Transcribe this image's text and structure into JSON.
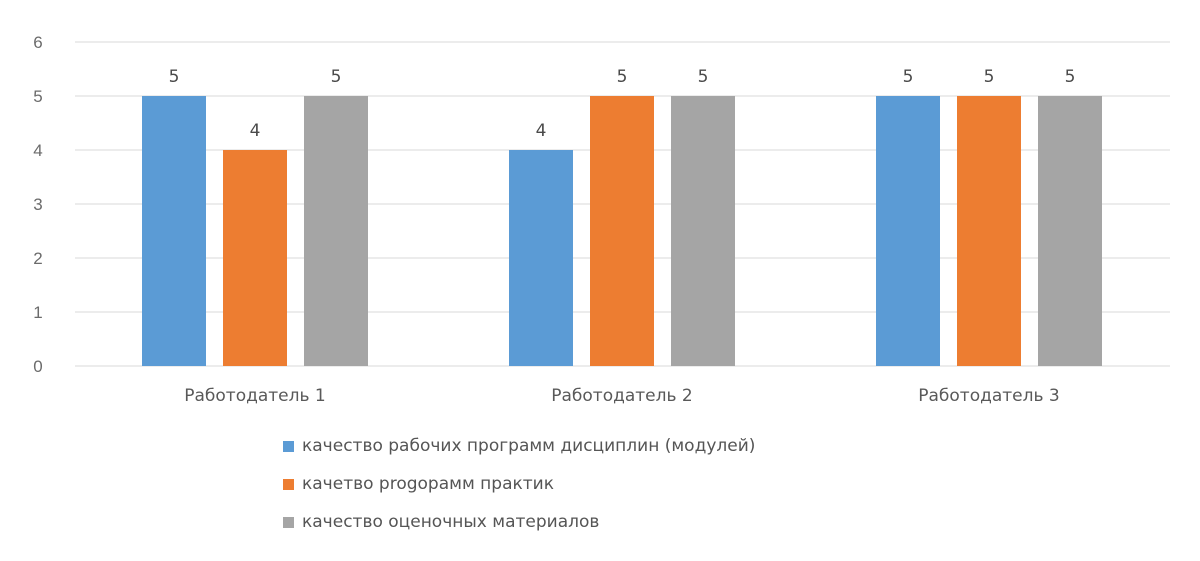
{
  "chart_data": {
    "type": "bar",
    "title": "",
    "xlabel": "",
    "ylabel": "",
    "ylim": [
      0,
      6
    ],
    "yticks": [
      0,
      1,
      2,
      3,
      4,
      5,
      6
    ],
    "grid": true,
    "legend_position": "bottom",
    "data_labels": true,
    "categories": [
      "Работодатель 1",
      "Работодатель 2",
      "Работодатель 3"
    ],
    "series": [
      {
        "name": "качество рабочих программ дисциплин (модулей)",
        "color": "#5b9bd5",
        "values": [
          5,
          4,
          5
        ]
      },
      {
        "name": "качетво progорамм практик",
        "color": "#ed7d31",
        "values": [
          4,
          5,
          5
        ]
      },
      {
        "name": "качество оценочных материалов",
        "color": "#a5a5a5",
        "values": [
          5,
          5,
          5
        ]
      }
    ]
  }
}
